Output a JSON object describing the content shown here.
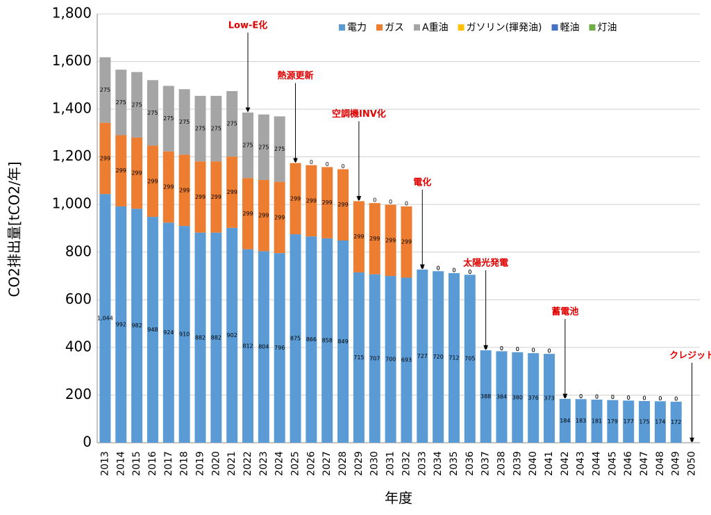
{
  "chart_data": {
    "type": "stacked_bar",
    "x_label": "年度",
    "y_label": "CO2排出量[tCO2/年]",
    "categories": [
      "2013",
      "2014",
      "2015",
      "2016",
      "2017",
      "2018",
      "2019",
      "2020",
      "2021",
      "2022",
      "2023",
      "2024",
      "2025",
      "2026",
      "2027",
      "2028",
      "2029",
      "2030",
      "2031",
      "2032",
      "2033",
      "2034",
      "2035",
      "2036",
      "2037",
      "2038",
      "2039",
      "2040",
      "2041",
      "2042",
      "2043",
      "2044",
      "2045",
      "2046",
      "2047",
      "2048",
      "2049",
      "2050"
    ],
    "series": [
      {
        "name": "電力",
        "color": "#5b9bd5",
        "values": [
          1044,
          992,
          982,
          948,
          924,
          910,
          882,
          882,
          902,
          812,
          804,
          796,
          875,
          866,
          858,
          849,
          715,
          707,
          700,
          693,
          727,
          720,
          712,
          705,
          388,
          384,
          380,
          376,
          373,
          184,
          183,
          181,
          179,
          177,
          175,
          174,
          172,
          0
        ],
        "value_labels": [
          "1,044",
          "992",
          "982",
          "948",
          "924",
          "910",
          "882",
          "882",
          "902",
          "812",
          "804",
          "796",
          "875",
          "866",
          "858",
          "849",
          "715",
          "707",
          "700",
          "693",
          "727",
          "720",
          "712",
          "705",
          "388",
          "384",
          "380",
          "376",
          "373",
          "184",
          "183",
          "181",
          "179",
          "177",
          "175",
          "174",
          "172",
          "0"
        ]
      },
      {
        "name": "ガス",
        "color": "#ed7d31",
        "values": [
          299,
          299,
          299,
          299,
          299,
          299,
          299,
          299,
          299,
          299,
          299,
          299,
          299,
          299,
          299,
          299,
          299,
          299,
          299,
          299,
          0,
          0,
          0,
          0,
          0,
          0,
          0,
          0,
          0,
          0,
          0,
          0,
          0,
          0,
          0,
          0,
          0,
          0
        ]
      },
      {
        "name": "A重油",
        "color": "#a5a5a5",
        "values": [
          275,
          275,
          275,
          275,
          275,
          275,
          275,
          275,
          275,
          275,
          275,
          275,
          0,
          0,
          0,
          0,
          0,
          0,
          0,
          0,
          0,
          0,
          0,
          0,
          0,
          0,
          0,
          0,
          0,
          0,
          0,
          0,
          0,
          0,
          0,
          0,
          0,
          0
        ]
      },
      {
        "name": "ガソリン(揮発油)",
        "color": "#ffc000"
      },
      {
        "name": "軽油",
        "color": "#4472c4"
      },
      {
        "name": "灯油",
        "color": "#70ad47"
      }
    ],
    "ylim": [
      0,
      1800
    ],
    "yticks": [
      0,
      200,
      400,
      600,
      800,
      {
        "value": 1000,
        "label": "1,000"
      },
      {
        "value": 1200,
        "label": "1,200"
      },
      {
        "value": 1400,
        "label": "1,400"
      },
      {
        "value": 1600,
        "label": "1,600"
      },
      {
        "value": 1800,
        "label": "1,800"
      }
    ],
    "grid": true,
    "legend": "top-right",
    "annotations": [
      {
        "text": "Low-E化",
        "x": "2022"
      },
      {
        "text": "熱源更新",
        "x": "2025"
      },
      {
        "text": "空調機INV化",
        "x": "2029"
      },
      {
        "text": "電化",
        "x": "2033"
      },
      {
        "text": "太陽光発電",
        "x": "2037"
      },
      {
        "text": "蓄電池",
        "x": "2042"
      },
      {
        "text": "クレジット",
        "x": "2050"
      }
    ]
  }
}
